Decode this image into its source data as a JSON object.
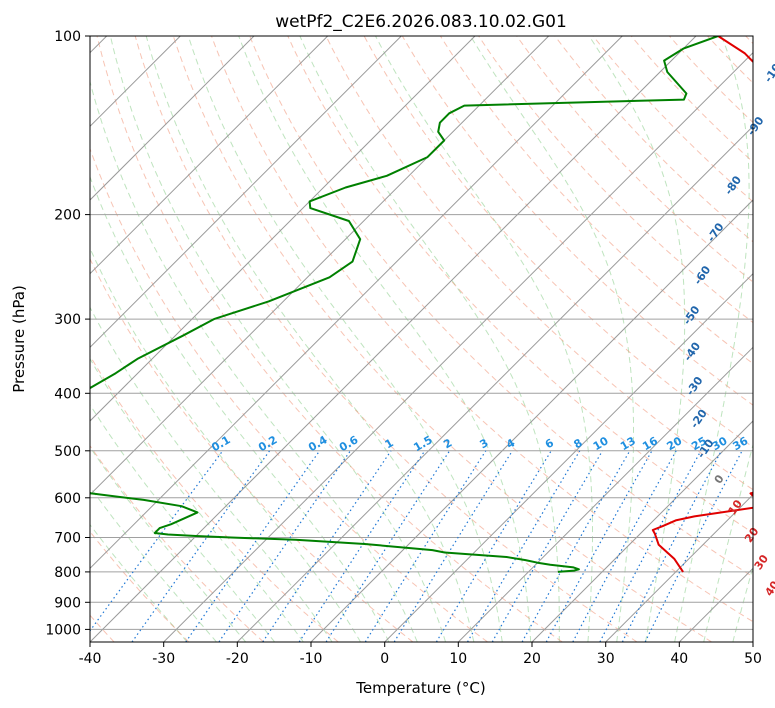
{
  "chart_data": {
    "type": "skew-t",
    "title": "wetPf2_C2E6.2026.083.10.02.G01",
    "xlabel": "Temperature (°C)",
    "ylabel": "Pressure (hPa)",
    "xlim": [
      -40,
      50
    ],
    "ylim": [
      1050,
      100
    ],
    "x_ticks": [
      -40,
      -30,
      -20,
      -10,
      0,
      10,
      20,
      30,
      40,
      50
    ],
    "y_ticks": [
      1000,
      900,
      800,
      700,
      600,
      500,
      400,
      300,
      200,
      100
    ],
    "grid": true,
    "series": [
      {
        "name": "Temperature",
        "color": "#e00000",
        "points": [
          [
            31,
            800
          ],
          [
            28,
            760
          ],
          [
            24,
            720
          ],
          [
            22,
            690
          ],
          [
            21.2,
            680
          ],
          [
            22,
            670
          ],
          [
            23,
            655
          ],
          [
            25,
            645
          ],
          [
            33,
            620
          ],
          [
            29.5,
            590
          ],
          [
            33,
            570
          ],
          [
            34.5,
            555
          ],
          [
            33,
            530
          ],
          [
            31,
            510
          ],
          [
            30,
            495
          ],
          [
            33,
            480
          ],
          [
            33.5,
            465
          ],
          [
            32.5,
            450
          ],
          [
            32,
            435
          ],
          [
            31,
            415
          ],
          [
            29.5,
            400
          ],
          [
            25.5,
            385
          ],
          [
            20,
            360
          ],
          [
            14,
            335
          ],
          [
            10,
            310
          ],
          [
            8,
            290
          ],
          [
            7,
            275
          ],
          [
            4,
            250
          ],
          [
            0,
            225
          ],
          [
            -4,
            205
          ],
          [
            -7,
            190
          ],
          [
            -9,
            175
          ],
          [
            -12,
            160
          ],
          [
            -17,
            140
          ],
          [
            -21,
            125
          ],
          [
            -26,
            115
          ],
          [
            -31,
            107
          ],
          [
            -37,
            100
          ]
        ]
      },
      {
        "name": "Dewpoint",
        "color": "#008000",
        "points": [
          [
            14,
            800
          ],
          [
            15,
            798
          ],
          [
            16,
            796
          ],
          [
            16.5,
            792
          ],
          [
            15.5,
            786
          ],
          [
            12,
            778
          ],
          [
            10,
            772
          ],
          [
            8,
            764
          ],
          [
            5,
            755
          ],
          [
            -4,
            742
          ],
          [
            -6,
            735
          ],
          [
            -16,
            718
          ],
          [
            -26,
            706
          ],
          [
            -35,
            700
          ],
          [
            -40,
            696
          ],
          [
            -44,
            692
          ],
          [
            -46,
            688
          ],
          [
            -46,
            675
          ],
          [
            -45,
            665
          ],
          [
            -44,
            650
          ],
          [
            -43,
            635
          ],
          [
            -46,
            620
          ],
          [
            -52,
            605
          ],
          [
            -60,
            590
          ],
          [
            -66,
            560
          ],
          [
            -70,
            520
          ],
          [
            -72,
            470
          ],
          [
            -74,
            430
          ],
          [
            -75,
            400
          ],
          [
            -74,
            385
          ],
          [
            -73,
            370
          ],
          [
            -72,
            350
          ],
          [
            -69,
            320
          ],
          [
            -67,
            300
          ],
          [
            -62,
            280
          ],
          [
            -57,
            255
          ],
          [
            -56,
            240
          ],
          [
            -58,
            220
          ],
          [
            -62,
            205
          ],
          [
            -69,
            195
          ],
          [
            -70,
            190
          ],
          [
            -67,
            180
          ],
          [
            -63,
            172
          ],
          [
            -60,
            160
          ],
          [
            -60,
            150
          ],
          [
            -62,
            145
          ],
          [
            -63,
            140
          ],
          [
            -63,
            135
          ],
          [
            -62,
            131
          ],
          [
            -33,
            128
          ],
          [
            -33.5,
            125
          ],
          [
            -39,
            115
          ],
          [
            -41,
            110
          ],
          [
            -40,
            105
          ],
          [
            -37,
            100
          ]
        ]
      }
    ],
    "dry_adiabat_labels": [
      "-100",
      "-90",
      "-80",
      "-70",
      "-60",
      "-50",
      "-40",
      "-30",
      "-20",
      "-10",
      "0",
      "10",
      "20",
      "30",
      "40"
    ],
    "mixing_ratio_labels": [
      "0.1",
      "0.2",
      "0.4",
      "0.6",
      "1",
      "1.5",
      "2",
      "3",
      "4",
      "6",
      "8",
      "10",
      "13",
      "16",
      "20",
      "25",
      "30",
      "36"
    ],
    "mixing_ratio_values": [
      0.1,
      0.2,
      0.4,
      0.6,
      1,
      1.5,
      2,
      3,
      4,
      6,
      8,
      10,
      13,
      16,
      20,
      25,
      30,
      36
    ]
  }
}
